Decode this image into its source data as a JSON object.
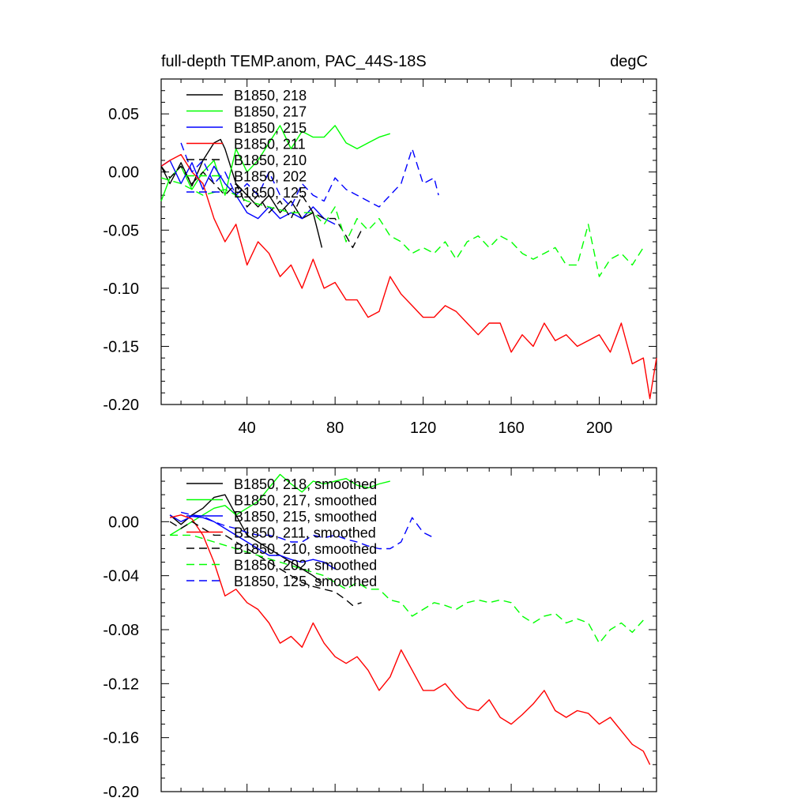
{
  "chart_data": [
    {
      "type": "line",
      "title": "full-depth TEMP.anom, PAC_44S-18S",
      "units": "degC",
      "xlim": [
        1,
        226
      ],
      "ylim": [
        -0.2,
        0.08
      ],
      "xticks": [
        40,
        80,
        120,
        160,
        200
      ],
      "xtick_labels": [
        "40",
        "80",
        "120",
        "160",
        "200"
      ],
      "yticks": [
        0.05,
        0.0,
        -0.05,
        -0.1,
        -0.15,
        -0.2
      ],
      "ytick_labels": [
        "0.05",
        "0.00",
        "-0.05",
        "-0.10",
        "-0.15",
        "-0.20"
      ],
      "legend_position": "top-left",
      "series": [
        {
          "name": "B1850, 218",
          "color": "#000000",
          "dash": "solid",
          "x": [
            1,
            5,
            10,
            15,
            20,
            25,
            28,
            30,
            35,
            40,
            45,
            50,
            55,
            60,
            65,
            70,
            72,
            74
          ],
          "values": [
            0.005,
            -0.01,
            0.008,
            -0.012,
            0.01,
            0.025,
            0.028,
            0.02,
            -0.01,
            -0.02,
            -0.03,
            -0.02,
            -0.035,
            -0.025,
            -0.04,
            -0.035,
            -0.05,
            -0.065
          ]
        },
        {
          "name": "B1850, 217",
          "color": "#00ff00",
          "dash": "solid",
          "x": [
            1,
            5,
            10,
            15,
            20,
            25,
            30,
            35,
            40,
            45,
            50,
            55,
            60,
            65,
            70,
            75,
            80,
            85,
            90,
            95,
            100,
            105
          ],
          "values": [
            -0.025,
            -0.005,
            0.005,
            -0.015,
            0.0,
            0.01,
            -0.02,
            0.02,
            0.0,
            0.01,
            0.025,
            0.04,
            0.02,
            0.035,
            0.03,
            0.03,
            0.04,
            0.025,
            0.02,
            0.025,
            0.03,
            0.033
          ]
        },
        {
          "name": "B1850, 215",
          "color": "#0000ff",
          "dash": "solid",
          "x": [
            1,
            5,
            10,
            15,
            20,
            25,
            30,
            35,
            40,
            45,
            50,
            55,
            60,
            65,
            70,
            75,
            80
          ],
          "values": [
            0.005,
            0.01,
            -0.01,
            0.008,
            -0.015,
            0.005,
            -0.01,
            -0.02,
            -0.035,
            -0.04,
            -0.03,
            -0.04,
            -0.035,
            -0.04,
            -0.03,
            -0.04,
            -0.045
          ]
        },
        {
          "name": "B1850, 211",
          "color": "#ff0000",
          "dash": "solid",
          "x": [
            1,
            5,
            10,
            15,
            20,
            25,
            30,
            35,
            40,
            45,
            50,
            55,
            60,
            65,
            70,
            75,
            80,
            85,
            90,
            95,
            100,
            105,
            110,
            115,
            120,
            125,
            130,
            135,
            140,
            145,
            150,
            155,
            160,
            165,
            170,
            175,
            180,
            185,
            190,
            195,
            200,
            205,
            210,
            215,
            220,
            223,
            226
          ],
          "values": [
            0.005,
            0.01,
            0.015,
            0.0,
            -0.01,
            -0.04,
            -0.06,
            -0.045,
            -0.08,
            -0.06,
            -0.07,
            -0.09,
            -0.08,
            -0.1,
            -0.075,
            -0.1,
            -0.095,
            -0.11,
            -0.11,
            -0.125,
            -0.12,
            -0.09,
            -0.105,
            -0.115,
            -0.125,
            -0.125,
            -0.115,
            -0.12,
            -0.13,
            -0.14,
            -0.13,
            -0.13,
            -0.155,
            -0.14,
            -0.15,
            -0.13,
            -0.145,
            -0.14,
            -0.15,
            -0.145,
            -0.14,
            -0.155,
            -0.13,
            -0.165,
            -0.16,
            -0.195,
            -0.16
          ]
        },
        {
          "name": "B1850, 210",
          "color": "#000000",
          "dash": "dashed",
          "x": [
            1,
            5,
            10,
            15,
            20,
            25,
            30,
            35,
            40,
            45,
            50,
            55,
            60,
            65,
            70,
            75,
            80,
            85,
            88,
            92
          ],
          "values": [
            0.005,
            -0.005,
            0.005,
            -0.01,
            0.0,
            -0.01,
            -0.02,
            -0.01,
            -0.03,
            -0.02,
            -0.035,
            -0.025,
            -0.04,
            -0.02,
            -0.035,
            -0.04,
            -0.04,
            -0.055,
            -0.065,
            -0.05
          ]
        },
        {
          "name": "B1850, 202",
          "color": "#00ff00",
          "dash": "dashed",
          "x": [
            1,
            10,
            20,
            30,
            40,
            50,
            60,
            70,
            75,
            80,
            85,
            90,
            95,
            100,
            105,
            110,
            115,
            120,
            125,
            130,
            135,
            140,
            145,
            150,
            155,
            160,
            165,
            170,
            175,
            180,
            185,
            190,
            195,
            200,
            205,
            210,
            215,
            220
          ],
          "values": [
            -0.005,
            -0.01,
            -0.02,
            -0.015,
            -0.025,
            -0.03,
            -0.035,
            -0.035,
            -0.045,
            -0.03,
            -0.06,
            -0.04,
            -0.05,
            -0.04,
            -0.055,
            -0.06,
            -0.07,
            -0.065,
            -0.07,
            -0.06,
            -0.075,
            -0.06,
            -0.055,
            -0.065,
            -0.055,
            -0.06,
            -0.07,
            -0.075,
            -0.07,
            -0.065,
            -0.08,
            -0.08,
            -0.045,
            -0.09,
            -0.075,
            -0.07,
            -0.08,
            -0.065
          ]
        },
        {
          "name": "B1850, 125",
          "color": "#0000ff",
          "dash": "dashed",
          "x": [
            10,
            15,
            20,
            25,
            30,
            35,
            40,
            45,
            50,
            55,
            60,
            65,
            70,
            75,
            80,
            85,
            90,
            95,
            100,
            105,
            110,
            115,
            120,
            125,
            127
          ],
          "values": [
            0.025,
            0.0,
            0.01,
            -0.01,
            0.0,
            -0.02,
            -0.01,
            -0.02,
            0.0,
            -0.02,
            -0.03,
            -0.01,
            -0.02,
            -0.025,
            -0.005,
            -0.015,
            -0.02,
            -0.025,
            -0.03,
            -0.02,
            -0.01,
            0.02,
            -0.01,
            -0.005,
            -0.02
          ]
        }
      ]
    },
    {
      "type": "line",
      "xlim": [
        1,
        226
      ],
      "ylim": [
        -0.2,
        0.04
      ],
      "xticks": [
        40,
        80,
        120,
        160,
        200
      ],
      "yticks": [
        0.0,
        -0.04,
        -0.08,
        -0.12,
        -0.16,
        -0.2
      ],
      "ytick_labels": [
        "0.00",
        "-0.04",
        "-0.08",
        "-0.12",
        "-0.16",
        "-0.20"
      ],
      "legend_position": "top-left",
      "series": [
        {
          "name": "B1850, 218, smoothed",
          "color": "#000000",
          "dash": "solid",
          "x": [
            5,
            10,
            15,
            20,
            25,
            30,
            35,
            40,
            45,
            50,
            55,
            60,
            65,
            70,
            74
          ],
          "values": [
            0.005,
            -0.002,
            0.005,
            0.01,
            0.018,
            0.02,
            0.005,
            -0.01,
            -0.015,
            -0.02,
            -0.025,
            -0.03,
            -0.035,
            -0.04,
            -0.045
          ]
        },
        {
          "name": "B1850, 217, smoothed",
          "color": "#00ff00",
          "dash": "solid",
          "x": [
            5,
            10,
            15,
            20,
            25,
            30,
            35,
            40,
            45,
            50,
            55,
            60,
            65,
            70,
            75,
            80,
            85,
            90,
            95,
            100,
            105
          ],
          "values": [
            -0.01,
            -0.005,
            0.0,
            0.005,
            0.01,
            0.012,
            0.005,
            0.01,
            0.015,
            0.025,
            0.035,
            0.028,
            0.022,
            0.03,
            0.028,
            0.03,
            0.032,
            0.027,
            0.025,
            0.028,
            0.03
          ]
        },
        {
          "name": "B1850, 215, smoothed",
          "color": "#0000ff",
          "dash": "solid",
          "x": [
            5,
            10,
            15,
            20,
            25,
            30,
            35,
            40,
            45,
            50,
            55,
            60,
            65,
            70,
            75,
            80
          ],
          "values": [
            0.005,
            0.0,
            0.004,
            0.003,
            0.0,
            -0.005,
            -0.01,
            -0.015,
            -0.02,
            -0.025,
            -0.025,
            -0.028,
            -0.03,
            -0.028,
            -0.03,
            -0.035
          ]
        },
        {
          "name": "B1850, 211, smoothed",
          "color": "#ff0000",
          "dash": "solid",
          "x": [
            5,
            10,
            15,
            20,
            25,
            30,
            35,
            40,
            45,
            50,
            55,
            60,
            65,
            70,
            75,
            80,
            85,
            90,
            95,
            100,
            105,
            110,
            115,
            120,
            125,
            130,
            135,
            140,
            145,
            150,
            155,
            160,
            165,
            170,
            175,
            180,
            185,
            190,
            195,
            200,
            205,
            210,
            215,
            220,
            223
          ],
          "values": [
            0.003,
            0.005,
            0.002,
            -0.01,
            -0.03,
            -0.055,
            -0.05,
            -0.06,
            -0.065,
            -0.075,
            -0.09,
            -0.085,
            -0.093,
            -0.075,
            -0.09,
            -0.1,
            -0.105,
            -0.1,
            -0.11,
            -0.125,
            -0.115,
            -0.095,
            -0.11,
            -0.125,
            -0.125,
            -0.12,
            -0.13,
            -0.138,
            -0.14,
            -0.132,
            -0.145,
            -0.15,
            -0.143,
            -0.135,
            -0.125,
            -0.14,
            -0.145,
            -0.14,
            -0.142,
            -0.15,
            -0.145,
            -0.155,
            -0.165,
            -0.17,
            -0.18
          ]
        },
        {
          "name": "B1850, 210, smoothed",
          "color": "#000000",
          "dash": "dashed",
          "x": [
            5,
            10,
            15,
            20,
            25,
            30,
            35,
            40,
            45,
            50,
            55,
            60,
            65,
            70,
            75,
            80,
            85,
            88,
            92
          ],
          "values": [
            0.0,
            -0.005,
            0.0,
            -0.005,
            -0.01,
            -0.01,
            -0.015,
            -0.02,
            -0.025,
            -0.03,
            -0.035,
            -0.04,
            -0.045,
            -0.048,
            -0.05,
            -0.052,
            -0.058,
            -0.062,
            -0.06
          ]
        },
        {
          "name": "B1850, 202, smoothed",
          "color": "#00ff00",
          "dash": "dashed",
          "x": [
            5,
            15,
            25,
            35,
            45,
            55,
            65,
            75,
            80,
            85,
            90,
            95,
            100,
            105,
            110,
            115,
            120,
            125,
            130,
            135,
            140,
            145,
            150,
            155,
            160,
            165,
            170,
            175,
            180,
            185,
            190,
            195,
            200,
            205,
            210,
            215,
            220
          ],
          "values": [
            -0.01,
            -0.01,
            -0.015,
            -0.02,
            -0.025,
            -0.03,
            -0.035,
            -0.04,
            -0.045,
            -0.05,
            -0.045,
            -0.05,
            -0.05,
            -0.058,
            -0.06,
            -0.07,
            -0.065,
            -0.06,
            -0.062,
            -0.065,
            -0.06,
            -0.058,
            -0.06,
            -0.058,
            -0.06,
            -0.07,
            -0.075,
            -0.07,
            -0.068,
            -0.075,
            -0.072,
            -0.075,
            -0.09,
            -0.08,
            -0.075,
            -0.082,
            -0.073
          ]
        },
        {
          "name": "B1850, 125, smoothed",
          "color": "#0000ff",
          "dash": "dashed",
          "x": [
            10,
            15,
            20,
            25,
            30,
            35,
            40,
            45,
            50,
            55,
            60,
            65,
            70,
            75,
            80,
            85,
            90,
            95,
            100,
            105,
            110,
            115,
            120,
            125
          ],
          "values": [
            0.007,
            0.005,
            0.004,
            0.0,
            -0.003,
            -0.005,
            -0.008,
            -0.01,
            -0.01,
            -0.012,
            -0.015,
            -0.015,
            -0.01,
            -0.012,
            -0.01,
            -0.013,
            -0.015,
            -0.018,
            -0.02,
            -0.02,
            -0.015,
            0.003,
            -0.008,
            -0.012
          ]
        }
      ]
    }
  ]
}
